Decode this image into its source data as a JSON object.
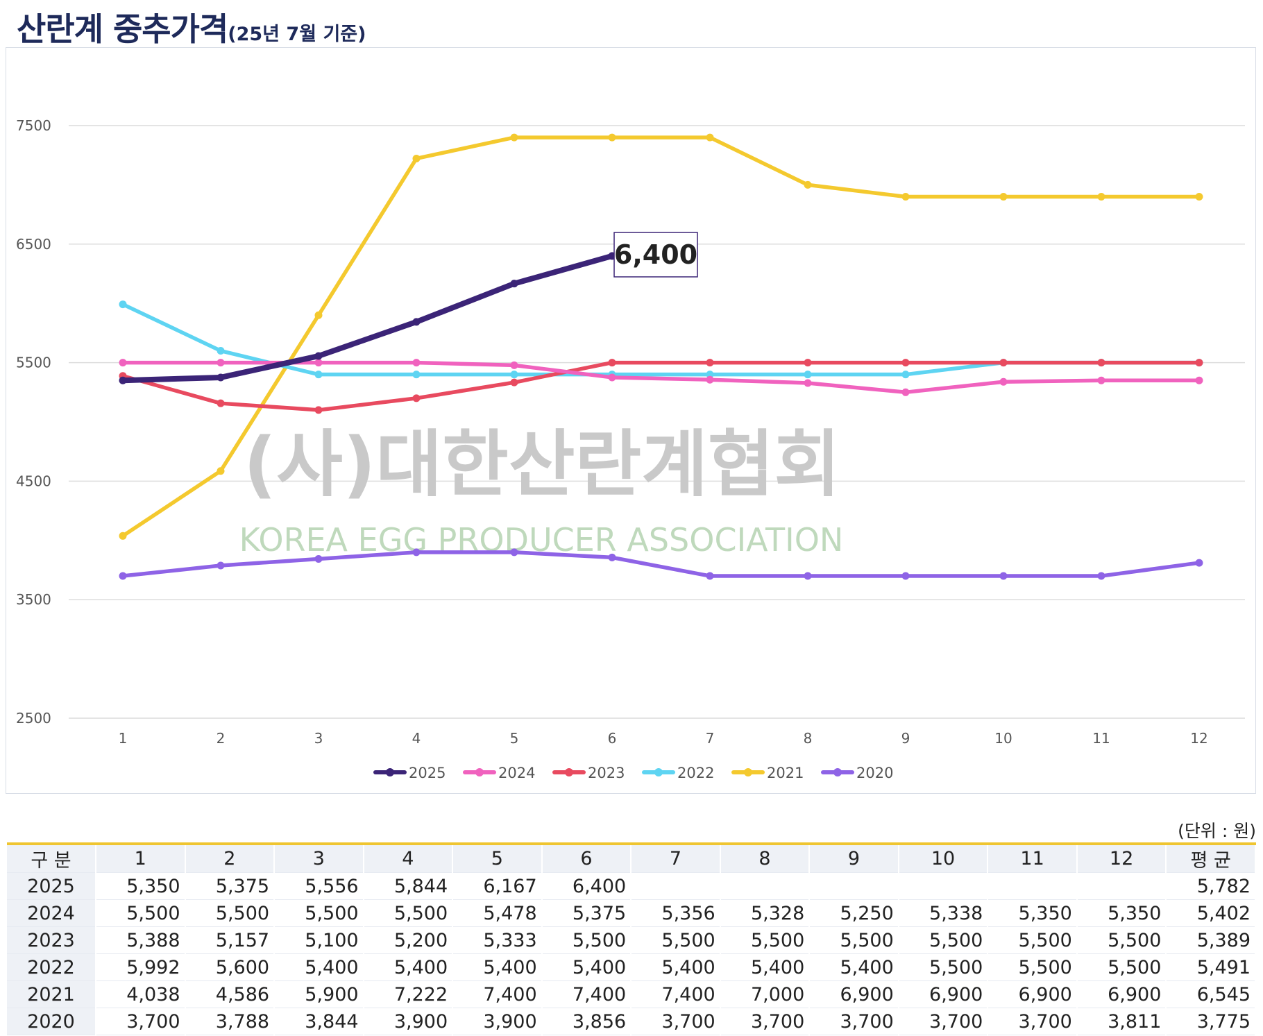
{
  "title": {
    "main": "산란계 중추가격",
    "sub": "(25년 7월 기준)"
  },
  "watermark": {
    "korean": "(사)대한산란계협회",
    "english": "KOREA EGG PRODUCER ASSOCIATION"
  },
  "callout": "6,400",
  "unit_note": "(단위 : 원)",
  "colors": {
    "2025": "#3b2477",
    "2024": "#f062be",
    "2023": "#e84a5f",
    "2022": "#5ed4f2",
    "2021": "#f4c92e",
    "2020": "#8e63e6",
    "grid": "#dcdcdc",
    "table_header_border": "#efc531"
  },
  "chart_data": {
    "type": "line",
    "x": [
      1,
      2,
      3,
      4,
      5,
      6,
      7,
      8,
      9,
      10,
      11,
      12
    ],
    "ylim": [
      2500,
      7500
    ],
    "yticks": [
      2500,
      3500,
      4500,
      5500,
      6500,
      7500
    ],
    "legend_position": "bottom-center",
    "grid": true,
    "series": [
      {
        "name": "2025",
        "values": [
          5350,
          5375,
          5556,
          5844,
          6167,
          6400,
          null,
          null,
          null,
          null,
          null,
          null
        ]
      },
      {
        "name": "2024",
        "values": [
          5500,
          5500,
          5500,
          5500,
          5478,
          5375,
          5356,
          5328,
          5250,
          5338,
          5350,
          5350
        ]
      },
      {
        "name": "2023",
        "values": [
          5388,
          5157,
          5100,
          5200,
          5333,
          5500,
          5500,
          5500,
          5500,
          5500,
          5500,
          5500
        ]
      },
      {
        "name": "2022",
        "values": [
          5992,
          5600,
          5400,
          5400,
          5400,
          5400,
          5400,
          5400,
          5400,
          5500,
          5500,
          5500
        ]
      },
      {
        "name": "2021",
        "values": [
          4038,
          4586,
          5900,
          7222,
          7400,
          7400,
          7400,
          7000,
          6900,
          6900,
          6900,
          6900
        ]
      },
      {
        "name": "2020",
        "values": [
          3700,
          3788,
          3844,
          3900,
          3900,
          3856,
          3700,
          3700,
          3700,
          3700,
          3700,
          3811
        ]
      }
    ]
  },
  "table": {
    "headers": [
      "구 분",
      "1",
      "2",
      "3",
      "4",
      "5",
      "6",
      "7",
      "8",
      "9",
      "10",
      "11",
      "12",
      "평 균"
    ],
    "rows": [
      [
        "2025",
        "5,350",
        "5,375",
        "5,556",
        "5,844",
        "6,167",
        "6,400",
        "",
        "",
        "",
        "",
        "",
        "",
        "5,782"
      ],
      [
        "2024",
        "5,500",
        "5,500",
        "5,500",
        "5,500",
        "5,478",
        "5,375",
        "5,356",
        "5,328",
        "5,250",
        "5,338",
        "5,350",
        "5,350",
        "5,402"
      ],
      [
        "2023",
        "5,388",
        "5,157",
        "5,100",
        "5,200",
        "5,333",
        "5,500",
        "5,500",
        "5,500",
        "5,500",
        "5,500",
        "5,500",
        "5,500",
        "5,389"
      ],
      [
        "2022",
        "5,992",
        "5,600",
        "5,400",
        "5,400",
        "5,400",
        "5,400",
        "5,400",
        "5,400",
        "5,400",
        "5,500",
        "5,500",
        "5,500",
        "5,491"
      ],
      [
        "2021",
        "4,038",
        "4,586",
        "5,900",
        "7,222",
        "7,400",
        "7,400",
        "7,400",
        "7,000",
        "6,900",
        "6,900",
        "6,900",
        "6,900",
        "6,545"
      ],
      [
        "2020",
        "3,700",
        "3,788",
        "3,844",
        "3,900",
        "3,900",
        "3,856",
        "3,700",
        "3,700",
        "3,700",
        "3,700",
        "3,700",
        "3,811",
        "3,775"
      ]
    ]
  }
}
